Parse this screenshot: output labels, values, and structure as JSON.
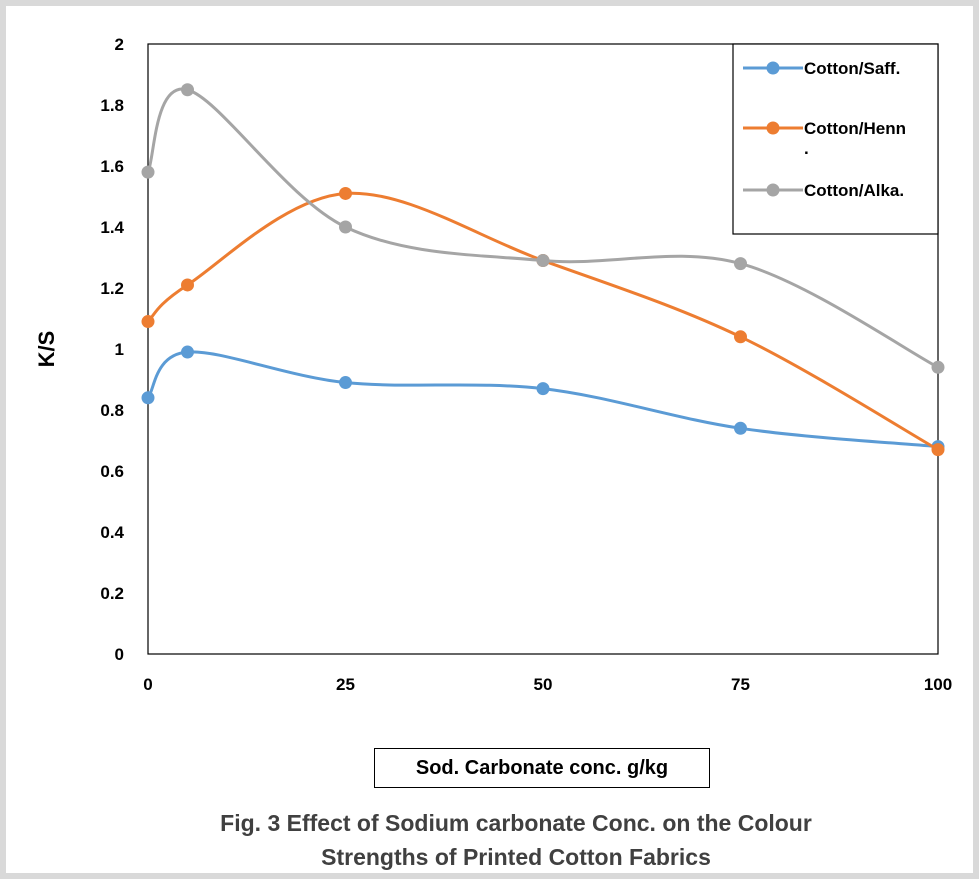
{
  "chart_data": {
    "type": "line",
    "x": [
      0,
      5,
      25,
      50,
      75,
      100
    ],
    "xticks": [
      "0",
      "25",
      "50",
      "75",
      "100"
    ],
    "xtick_values": [
      0,
      25,
      50,
      75,
      100
    ],
    "xlim": [
      0,
      100
    ],
    "ylim": [
      0,
      2
    ],
    "yticks": [
      "0",
      "0.2",
      "0.4",
      "0.6",
      "0.8",
      "1",
      "1.2",
      "1.4",
      "1.6",
      "1.8",
      "2"
    ],
    "ytick_values": [
      0,
      0.2,
      0.4,
      0.6,
      0.8,
      1,
      1.2,
      1.4,
      1.6,
      1.8,
      2
    ],
    "ylabel": "K/S",
    "xlabel": "Sod. Carbonate conc. g/kg",
    "legend_position": "top-right",
    "grid": false,
    "series": [
      {
        "name": "Cotton/Saff.",
        "color": "#5b9bd5",
        "values": [
          0.84,
          0.99,
          0.89,
          0.87,
          0.74,
          0.68
        ]
      },
      {
        "name": "Cotton/Henn\n.",
        "color": "#ed7d31",
        "values": [
          1.09,
          1.21,
          1.51,
          1.29,
          1.04,
          0.67
        ]
      },
      {
        "name": "Cotton/Alka.",
        "color": "#a5a5a5",
        "values": [
          1.58,
          1.85,
          1.4,
          1.29,
          1.28,
          0.94
        ]
      }
    ]
  },
  "caption": {
    "line1": "Fig. 3 Effect of  Sodium carbonate Conc. on the Colour",
    "line2": "Strengths of Printed Cotton Fabrics"
  }
}
